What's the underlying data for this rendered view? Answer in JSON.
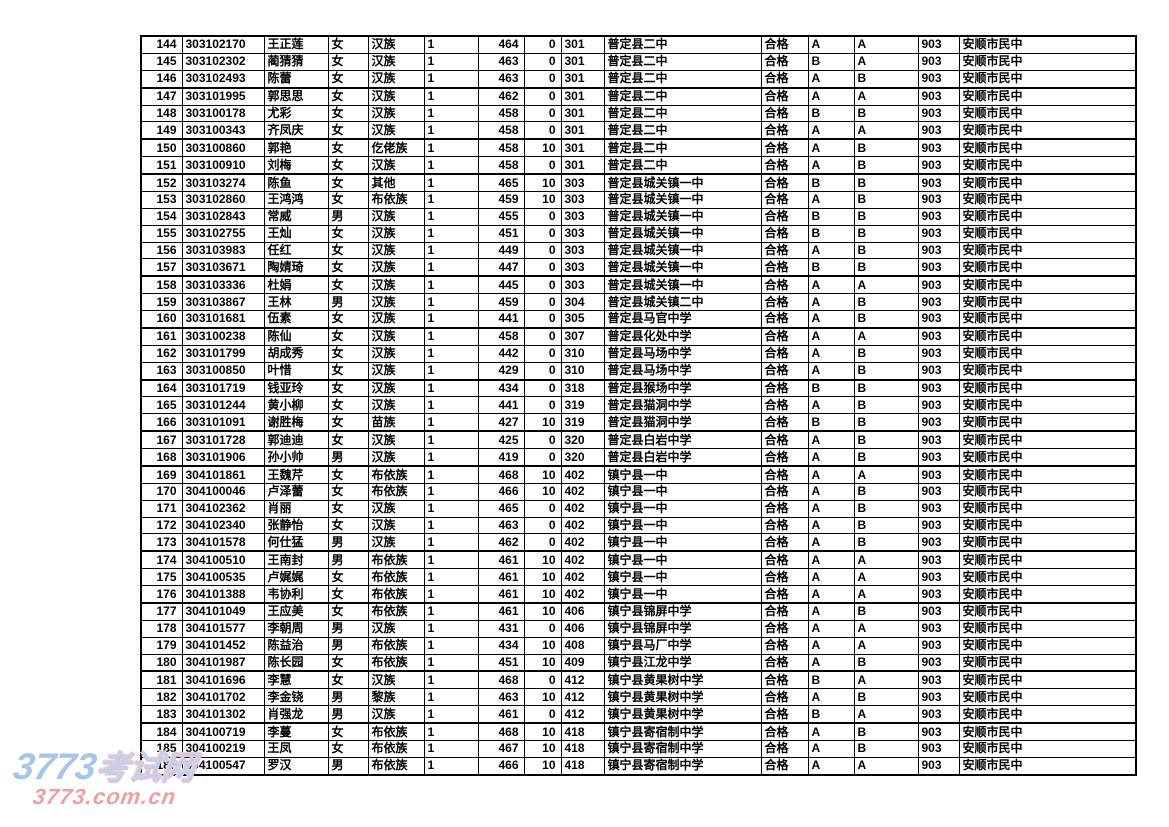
{
  "watermark": {
    "site_name_number": "3773",
    "site_name_text": "考试网",
    "site_url": "3773.com.cn",
    "brand_blue": "#a7c5ea",
    "brand_pink": "#ef9fa4"
  },
  "table": {
    "rows": [
      [
        "144",
        "303102170",
        "王正莲",
        "女",
        "汉族",
        "1",
        "464",
        "0",
        "301",
        "普定县二中",
        "合格",
        "A",
        "A",
        "903",
        "安顺市民中"
      ],
      [
        "145",
        "303102302",
        "蔺猜猜",
        "女",
        "汉族",
        "1",
        "463",
        "0",
        "301",
        "普定县二中",
        "合格",
        "B",
        "A",
        "903",
        "安顺市民中"
      ],
      [
        "146",
        "303102493",
        "陈蕾",
        "女",
        "汉族",
        "1",
        "463",
        "0",
        "301",
        "普定县二中",
        "合格",
        "A",
        "B",
        "903",
        "安顺市民中"
      ],
      [
        "147",
        "303101995",
        "郭思思",
        "女",
        "汉族",
        "1",
        "462",
        "0",
        "301",
        "普定县二中",
        "合格",
        "A",
        "A",
        "903",
        "安顺市民中"
      ],
      [
        "148",
        "303100178",
        "尤彩",
        "女",
        "汉族",
        "1",
        "458",
        "0",
        "301",
        "普定县二中",
        "合格",
        "B",
        "B",
        "903",
        "安顺市民中"
      ],
      [
        "149",
        "303100343",
        "齐凤庆",
        "女",
        "汉族",
        "1",
        "458",
        "0",
        "301",
        "普定县二中",
        "合格",
        "A",
        "A",
        "903",
        "安顺市民中"
      ],
      [
        "150",
        "303100860",
        "郭艳",
        "女",
        "仡佬族",
        "1",
        "458",
        "10",
        "301",
        "普定县二中",
        "合格",
        "A",
        "B",
        "903",
        "安顺市民中"
      ],
      [
        "151",
        "303100910",
        "刘梅",
        "女",
        "汉族",
        "1",
        "458",
        "0",
        "301",
        "普定县二中",
        "合格",
        "A",
        "B",
        "903",
        "安顺市民中"
      ],
      [
        "152",
        "303103274",
        "陈鱼",
        "女",
        "其他",
        "1",
        "465",
        "10",
        "303",
        "普定县城关镇一中",
        "合格",
        "B",
        "B",
        "903",
        "安顺市民中"
      ],
      [
        "153",
        "303102860",
        "王鸿鸿",
        "女",
        "布依族",
        "1",
        "459",
        "10",
        "303",
        "普定县城关镇一中",
        "合格",
        "A",
        "B",
        "903",
        "安顺市民中"
      ],
      [
        "154",
        "303102843",
        "常威",
        "男",
        "汉族",
        "1",
        "455",
        "0",
        "303",
        "普定县城关镇一中",
        "合格",
        "B",
        "B",
        "903",
        "安顺市民中"
      ],
      [
        "155",
        "303102755",
        "王灿",
        "女",
        "汉族",
        "1",
        "451",
        "0",
        "303",
        "普定县城关镇一中",
        "合格",
        "B",
        "B",
        "903",
        "安顺市民中"
      ],
      [
        "156",
        "303103983",
        "任红",
        "女",
        "汉族",
        "1",
        "449",
        "0",
        "303",
        "普定县城关镇一中",
        "合格",
        "A",
        "B",
        "903",
        "安顺市民中"
      ],
      [
        "157",
        "303103671",
        "陶婧琦",
        "女",
        "汉族",
        "1",
        "447",
        "0",
        "303",
        "普定县城关镇一中",
        "合格",
        "B",
        "B",
        "903",
        "安顺市民中"
      ],
      [
        "158",
        "303103336",
        "杜娟",
        "女",
        "汉族",
        "1",
        "445",
        "0",
        "303",
        "普定县城关镇一中",
        "合格",
        "A",
        "A",
        "903",
        "安顺市民中"
      ],
      [
        "159",
        "303103867",
        "王林",
        "男",
        "汉族",
        "1",
        "459",
        "0",
        "304",
        "普定县城关镇二中",
        "合格",
        "A",
        "B",
        "903",
        "安顺市民中"
      ],
      [
        "160",
        "303101681",
        "伍素",
        "女",
        "汉族",
        "1",
        "441",
        "0",
        "305",
        "普定县马官中学",
        "合格",
        "A",
        "B",
        "903",
        "安顺市民中"
      ],
      [
        "161",
        "303100238",
        "陈仙",
        "女",
        "汉族",
        "1",
        "458",
        "0",
        "307",
        "普定县化处中学",
        "合格",
        "A",
        "A",
        "903",
        "安顺市民中"
      ],
      [
        "162",
        "303101799",
        "胡成秀",
        "女",
        "汉族",
        "1",
        "442",
        "0",
        "310",
        "普定县马场中学",
        "合格",
        "A",
        "B",
        "903",
        "安顺市民中"
      ],
      [
        "163",
        "303100850",
        "叶惜",
        "女",
        "汉族",
        "1",
        "429",
        "0",
        "310",
        "普定县马场中学",
        "合格",
        "A",
        "B",
        "903",
        "安顺市民中"
      ],
      [
        "164",
        "303101719",
        "钱亚玲",
        "女",
        "汉族",
        "1",
        "434",
        "0",
        "318",
        "普定县猴场中学",
        "合格",
        "B",
        "B",
        "903",
        "安顺市民中"
      ],
      [
        "165",
        "303101244",
        "黄小柳",
        "女",
        "汉族",
        "1",
        "441",
        "0",
        "319",
        "普定县猫洞中学",
        "合格",
        "A",
        "B",
        "903",
        "安顺市民中"
      ],
      [
        "166",
        "303101091",
        "谢胜梅",
        "女",
        "苗族",
        "1",
        "427",
        "10",
        "319",
        "普定县猫洞中学",
        "合格",
        "B",
        "B",
        "903",
        "安顺市民中"
      ],
      [
        "167",
        "303101728",
        "郭迪迪",
        "女",
        "汉族",
        "1",
        "425",
        "0",
        "320",
        "普定县白岩中学",
        "合格",
        "A",
        "B",
        "903",
        "安顺市民中"
      ],
      [
        "168",
        "303101906",
        "孙小帅",
        "男",
        "汉族",
        "1",
        "419",
        "0",
        "320",
        "普定县白岩中学",
        "合格",
        "A",
        "B",
        "903",
        "安顺市民中"
      ],
      [
        "169",
        "304101861",
        "王魏芹",
        "女",
        "布依族",
        "1",
        "468",
        "10",
        "402",
        "镇宁县一中",
        "合格",
        "A",
        "A",
        "903",
        "安顺市民中"
      ],
      [
        "170",
        "304100046",
        "卢泽蕾",
        "女",
        "布依族",
        "1",
        "466",
        "10",
        "402",
        "镇宁县一中",
        "合格",
        "A",
        "B",
        "903",
        "安顺市民中"
      ],
      [
        "171",
        "304102362",
        "肖丽",
        "女",
        "汉族",
        "1",
        "465",
        "0",
        "402",
        "镇宁县一中",
        "合格",
        "A",
        "B",
        "903",
        "安顺市民中"
      ],
      [
        "172",
        "304102340",
        "张静怡",
        "女",
        "汉族",
        "1",
        "463",
        "0",
        "402",
        "镇宁县一中",
        "合格",
        "A",
        "B",
        "903",
        "安顺市民中"
      ],
      [
        "173",
        "304101578",
        "何仕猛",
        "男",
        "汉族",
        "1",
        "462",
        "0",
        "402",
        "镇宁县一中",
        "合格",
        "A",
        "B",
        "903",
        "安顺市民中"
      ],
      [
        "174",
        "304100510",
        "王南封",
        "男",
        "布依族",
        "1",
        "461",
        "10",
        "402",
        "镇宁县一中",
        "合格",
        "A",
        "A",
        "903",
        "安顺市民中"
      ],
      [
        "175",
        "304100535",
        "卢娓娓",
        "女",
        "布依族",
        "1",
        "461",
        "10",
        "402",
        "镇宁县一中",
        "合格",
        "A",
        "A",
        "903",
        "安顺市民中"
      ],
      [
        "176",
        "304101388",
        "韦协利",
        "女",
        "布依族",
        "1",
        "461",
        "10",
        "402",
        "镇宁县一中",
        "合格",
        "A",
        "A",
        "903",
        "安顺市民中"
      ],
      [
        "177",
        "304101049",
        "王应美",
        "女",
        "布依族",
        "1",
        "461",
        "10",
        "406",
        "镇宁县锦屏中学",
        "合格",
        "A",
        "B",
        "903",
        "安顺市民中"
      ],
      [
        "178",
        "304101577",
        "李朝周",
        "男",
        "汉族",
        "1",
        "431",
        "0",
        "406",
        "镇宁县锦屏中学",
        "合格",
        "A",
        "A",
        "903",
        "安顺市民中"
      ],
      [
        "179",
        "304101452",
        "陈益治",
        "男",
        "布依族",
        "1",
        "434",
        "10",
        "408",
        "镇宁县马厂中学",
        "合格",
        "A",
        "A",
        "903",
        "安顺市民中"
      ],
      [
        "180",
        "304101987",
        "陈长园",
        "女",
        "布依族",
        "1",
        "451",
        "10",
        "409",
        "镇宁县江龙中学",
        "合格",
        "A",
        "B",
        "903",
        "安顺市民中"
      ],
      [
        "181",
        "304101696",
        "李慧",
        "女",
        "汉族",
        "1",
        "468",
        "0",
        "412",
        "镇宁县黄果树中学",
        "合格",
        "B",
        "A",
        "903",
        "安顺市民中"
      ],
      [
        "182",
        "304101702",
        "李金铙",
        "男",
        "黎族",
        "1",
        "463",
        "10",
        "412",
        "镇宁县黄果树中学",
        "合格",
        "A",
        "B",
        "903",
        "安顺市民中"
      ],
      [
        "183",
        "304101302",
        "肖强龙",
        "男",
        "汉族",
        "1",
        "461",
        "0",
        "412",
        "镇宁县黄果树中学",
        "合格",
        "B",
        "A",
        "903",
        "安顺市民中"
      ],
      [
        "184",
        "304100719",
        "李蔓",
        "女",
        "布依族",
        "1",
        "468",
        "10",
        "418",
        "镇宁县寄宿制中学",
        "合格",
        "A",
        "B",
        "903",
        "安顺市民中"
      ],
      [
        "185",
        "304100219",
        "王凤",
        "女",
        "布依族",
        "1",
        "467",
        "10",
        "418",
        "镇宁县寄宿制中学",
        "合格",
        "A",
        "B",
        "903",
        "安顺市民中"
      ],
      [
        "186",
        "304100547",
        "罗汉",
        "男",
        "布依族",
        "1",
        "466",
        "10",
        "418",
        "镇宁县寄宿制中学",
        "合格",
        "A",
        "A",
        "903",
        "安顺市民中"
      ]
    ]
  }
}
